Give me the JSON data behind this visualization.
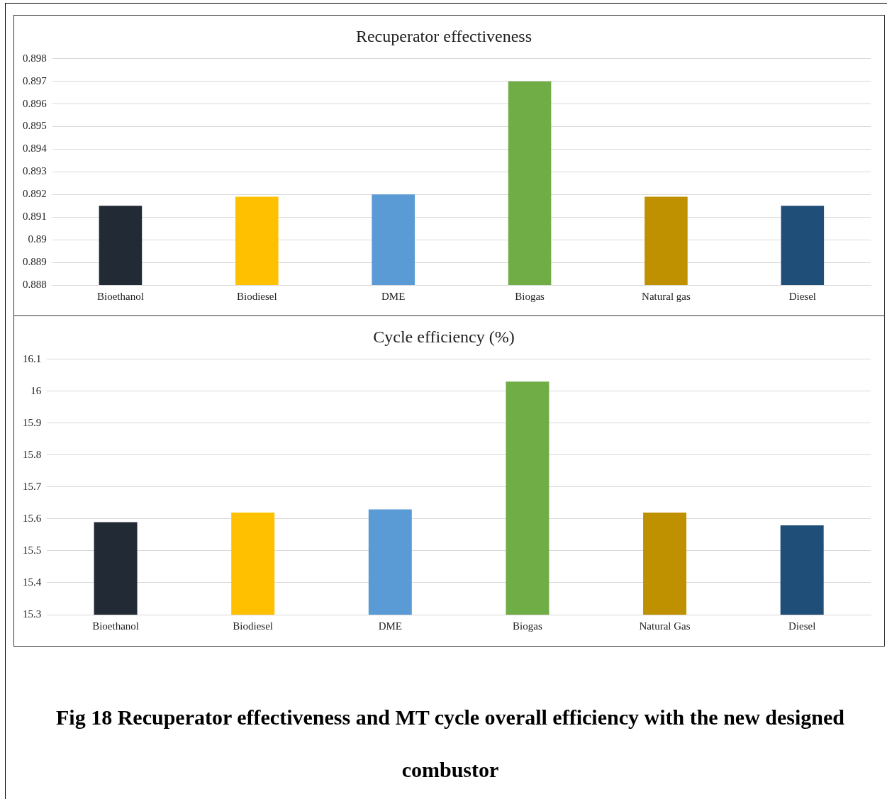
{
  "chart_data": [
    {
      "type": "bar",
      "title": "Recuperator effectiveness",
      "categories": [
        "Bioethanol",
        "Biodiesel",
        "DME",
        "Biogas",
        "Natural gas",
        "Diesel"
      ],
      "values": [
        0.8915,
        0.8919,
        0.892,
        0.897,
        0.8919,
        0.8915
      ],
      "colors": [
        "#222a35",
        "#ffc000",
        "#5b9bd5",
        "#70ad47",
        "#bf9000",
        "#1f4e79"
      ],
      "ylim": [
        0.888,
        0.898
      ],
      "yticks": [
        0.888,
        0.889,
        0.89,
        0.891,
        0.892,
        0.893,
        0.894,
        0.895,
        0.896,
        0.897,
        0.898
      ],
      "grid": "y"
    },
    {
      "type": "bar",
      "title": "Cycle efficiency (%)",
      "categories": [
        "Bioethanol",
        "Biodiesel",
        "DME",
        "Biogas",
        "Natural Gas",
        "Diesel"
      ],
      "values": [
        15.59,
        15.62,
        15.63,
        16.03,
        15.62,
        15.58
      ],
      "colors": [
        "#222a35",
        "#ffc000",
        "#5b9bd5",
        "#70ad47",
        "#bf9000",
        "#1f4e79"
      ],
      "ylim": [
        15.3,
        16.1
      ],
      "yticks": [
        15.3,
        15.4,
        15.5,
        15.6,
        15.7,
        15.8,
        15.9,
        16,
        16.1
      ],
      "grid": "y",
      "annotations": [
        "Fig 18 Recuperator effectiveness and MT cycle overall efficiency with the new designed combustor"
      ]
    }
  ]
}
